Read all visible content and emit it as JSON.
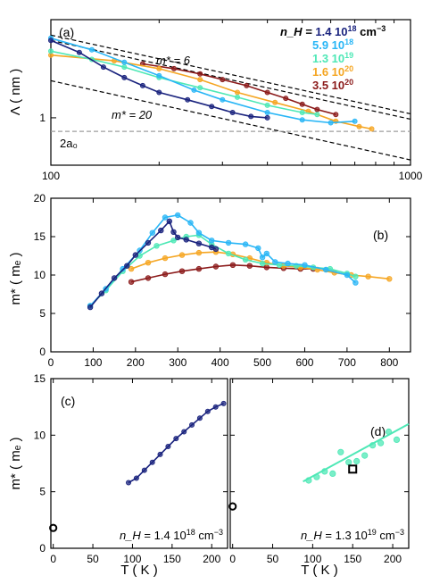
{
  "colors": {
    "s1": "#1a237e",
    "s2": "#29b6f6",
    "s3": "#4ee8b6",
    "s4": "#f5a623",
    "s5": "#8b1a1a",
    "ref": "#9e9e9e"
  },
  "chart_data": [
    {
      "id": "a",
      "type": "line",
      "panel_label": "(a)",
      "ylabel": "Λ ( nm )",
      "xscale": "log",
      "yscale": "log",
      "xlim": [
        100,
        1000
      ],
      "ylim": [
        0.5,
        4.2
      ],
      "xticks": [
        "100",
        "1000"
      ],
      "yticks": [
        "1"
      ],
      "legend": {
        "lines": [
          {
            "prefix": "n_H = ",
            "value": "1.4 10",
            "exp": "18",
            "suffix": " cm",
            "suffix_exp": "−3",
            "series": "s1"
          },
          {
            "prefix": "",
            "value": "5.9 10",
            "exp": "18",
            "suffix": "",
            "suffix_exp": "",
            "series": "s2"
          },
          {
            "prefix": "",
            "value": "1.3 10",
            "exp": "19",
            "suffix": "",
            "suffix_exp": "",
            "series": "s3"
          },
          {
            "prefix": "",
            "value": "1.6 10",
            "exp": "20",
            "suffix": "",
            "suffix_exp": "",
            "series": "s4"
          },
          {
            "prefix": "",
            "value": "3.5 10",
            "exp": "20",
            "suffix": "",
            "suffix_exp": "",
            "series": "s5"
          }
        ],
        "placement": "top-right"
      },
      "reference_lines": [
        {
          "label": "m* = 6",
          "x": [
            100,
            1000
          ],
          "y": [
            3.1,
            0.98
          ]
        },
        {
          "label": "m* = 20",
          "x": [
            100,
            1000
          ],
          "y": [
            1.72,
            0.54
          ]
        },
        {
          "x": [
            100,
            1000
          ],
          "y": [
            3.35,
            1.06
          ]
        }
      ],
      "hline": {
        "label": "2a₀",
        "y": 0.82
      },
      "series": [
        {
          "key": "s1",
          "x": [
            100,
            120,
            140,
            160,
            180,
            200,
            240,
            280,
            320,
            360,
            400
          ],
          "y": [
            3.1,
            2.6,
            2.1,
            1.8,
            1.6,
            1.45,
            1.3,
            1.18,
            1.08,
            1.02,
            1.0
          ]
        },
        {
          "key": "s2",
          "x": [
            100,
            130,
            160,
            200,
            250,
            300,
            400,
            500,
            600,
            700
          ],
          "y": [
            3.2,
            2.7,
            2.25,
            1.85,
            1.5,
            1.3,
            1.08,
            0.97,
            0.93,
            0.95
          ]
        },
        {
          "key": "s3",
          "x": [
            100,
            130,
            160,
            200,
            260,
            330,
            400,
            500,
            550
          ],
          "y": [
            2.65,
            2.35,
            2.1,
            1.8,
            1.55,
            1.35,
            1.2,
            1.08,
            1.05
          ]
        },
        {
          "key": "s4",
          "x": [
            100,
            150,
            200,
            260,
            330,
            420,
            520,
            620,
            720,
            780
          ],
          "y": [
            2.5,
            2.3,
            2.05,
            1.75,
            1.45,
            1.25,
            1.1,
            0.95,
            0.88,
            0.85
          ]
        },
        {
          "key": "s5",
          "x": [
            180,
            220,
            260,
            300,
            350,
            400,
            450,
            500,
            550,
            620
          ],
          "y": [
            2.2,
            2.05,
            1.9,
            1.75,
            1.6,
            1.45,
            1.33,
            1.22,
            1.13,
            1.05
          ]
        }
      ]
    },
    {
      "id": "b",
      "type": "line",
      "panel_label": "(b)",
      "ylabel": "m* ( mₑ )",
      "xlim": [
        0,
        850
      ],
      "ylim": [
        0,
        20
      ],
      "xticks": [
        "0",
        "100",
        "200",
        "300",
        "400",
        "500",
        "600",
        "700",
        "800"
      ],
      "yticks": [
        "0",
        "5",
        "10",
        "15",
        "20"
      ],
      "series": [
        {
          "key": "s1",
          "x": [
            93,
            120,
            150,
            180,
            200,
            230,
            260,
            280,
            290,
            300,
            320,
            350,
            380,
            390
          ],
          "y": [
            5.8,
            7.6,
            9.6,
            11.2,
            12.6,
            14.2,
            15.8,
            17.0,
            15.6,
            14.9,
            14.6,
            14.1,
            13.6,
            13.4
          ]
        },
        {
          "key": "s2",
          "x": [
            93,
            130,
            170,
            210,
            240,
            270,
            300,
            330,
            350,
            380,
            420,
            460,
            490,
            500,
            510,
            530,
            560,
            600,
            650,
            700,
            720
          ],
          "y": [
            6.0,
            8.2,
            10.8,
            13.2,
            15.5,
            17.5,
            17.8,
            16.8,
            15.5,
            14.5,
            14.2,
            14.0,
            13.5,
            12.3,
            12.8,
            11.7,
            11.5,
            11.3,
            10.7,
            10.0,
            9.0
          ]
        },
        {
          "key": "s3",
          "x": [
            93,
            130,
            170,
            210,
            250,
            290,
            320,
            350,
            380,
            420,
            460,
            500,
            540,
            580,
            620,
            660,
            700,
            720
          ],
          "y": [
            6.0,
            8.0,
            10.5,
            12.5,
            13.8,
            14.5,
            15.0,
            15.2,
            14.0,
            12.8,
            12.0,
            11.5,
            11.3,
            11.2,
            11.0,
            10.8,
            10.2,
            9.8
          ]
        },
        {
          "key": "s4",
          "x": [
            190,
            230,
            270,
            310,
            350,
            390,
            430,
            470,
            510,
            550,
            590,
            630,
            670,
            710,
            750,
            800
          ],
          "y": [
            10.8,
            11.6,
            12.2,
            12.6,
            12.9,
            13.0,
            12.7,
            12.2,
            11.6,
            11.2,
            11.0,
            10.7,
            10.3,
            10.0,
            9.8,
            9.5
          ]
        },
        {
          "key": "s5",
          "x": [
            190,
            230,
            270,
            310,
            350,
            390,
            430,
            470,
            510,
            550,
            590,
            620
          ],
          "y": [
            9.1,
            9.6,
            10.1,
            10.5,
            10.8,
            11.1,
            11.3,
            11.2,
            11.0,
            10.9,
            10.8,
            10.8
          ]
        }
      ]
    },
    {
      "id": "c",
      "type": "line",
      "panel_label": "(c)",
      "ylabel": "m* ( mₑ )",
      "xlabel": "T ( K )",
      "xlim": [
        -3,
        220
      ],
      "ylim": [
        0,
        15
      ],
      "xticks": [
        "0",
        "50",
        "100",
        "150",
        "200"
      ],
      "yticks": [
        "0",
        "5",
        "10",
        "15"
      ],
      "annotation": {
        "value": "n_H = 1.4 10",
        "exp": "18",
        "suffix": " cm",
        "suffix_exp": "−3"
      },
      "series": [
        {
          "key": "s1",
          "x": [
            95,
            105,
            115,
            125,
            135,
            145,
            155,
            165,
            175,
            185,
            195,
            205,
            215
          ],
          "y": [
            5.8,
            6.2,
            6.9,
            7.6,
            8.3,
            9.0,
            9.7,
            10.3,
            10.9,
            11.5,
            12.1,
            12.5,
            12.8
          ]
        }
      ],
      "marker_at_zero": {
        "x": 0,
        "y": 1.8
      }
    },
    {
      "id": "d",
      "type": "scatter",
      "panel_label": "(d)",
      "xlabel": "T ( K )",
      "xlim": [
        -3,
        220
      ],
      "ylim": [
        0,
        15
      ],
      "xticks": [
        "0",
        "50",
        "100",
        "150",
        "200"
      ],
      "annotation": {
        "value": "n_H = 1.3 10",
        "exp": "19",
        "suffix": " cm",
        "suffix_exp": "−3"
      },
      "series": [
        {
          "key": "s3",
          "x": [
            95,
            105,
            115,
            125,
            135,
            145,
            155,
            165,
            175,
            185,
            195,
            205
          ],
          "y": [
            6.0,
            6.3,
            6.8,
            6.6,
            8.5,
            7.6,
            7.7,
            8.2,
            9.1,
            9.3,
            10.3,
            9.6
          ]
        }
      ],
      "fit": {
        "key": "s3",
        "x": [
          88,
          220
        ],
        "y": [
          5.9,
          11.0
        ]
      },
      "marker_at_zero": {
        "x": 0,
        "y": 3.7
      },
      "square_marker": {
        "x": 150,
        "y": 7.0
      }
    }
  ]
}
